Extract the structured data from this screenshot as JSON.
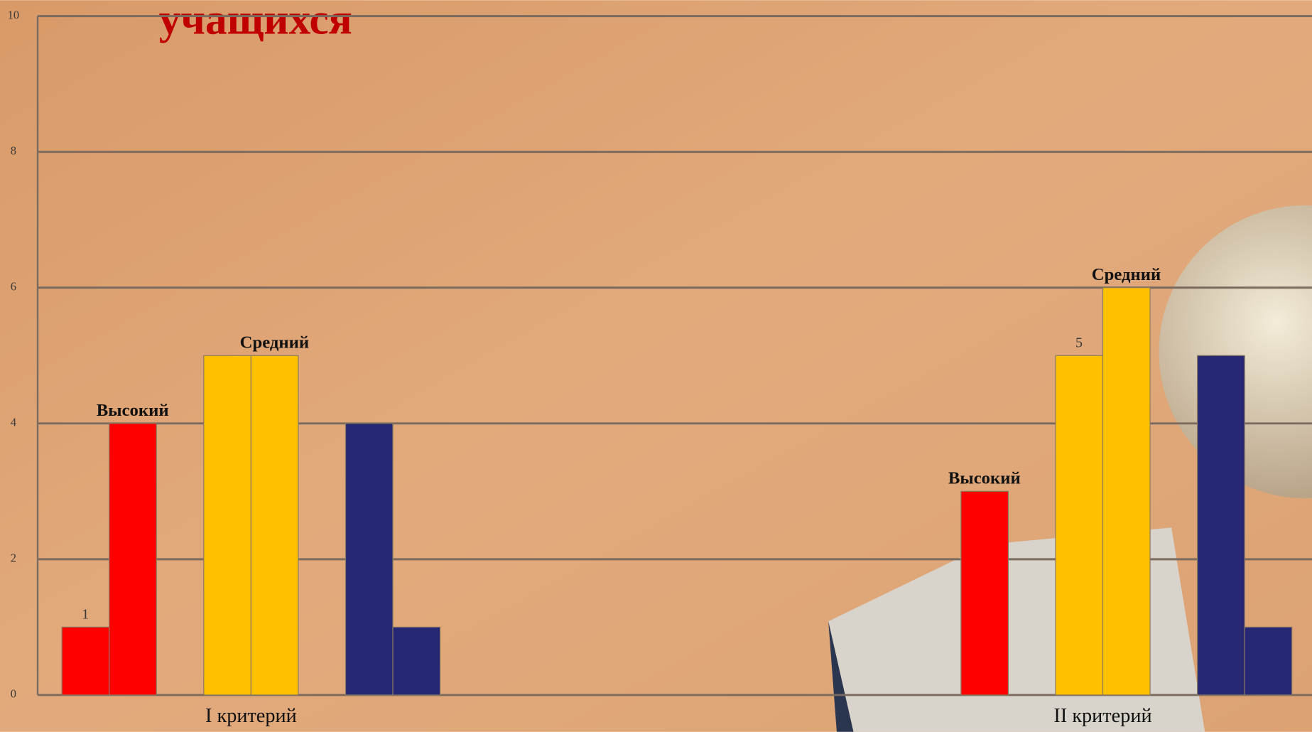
{
  "chart_data": {
    "type": "bar",
    "title": "учащихся",
    "categories": [
      "I критерий",
      "II критерий"
    ],
    "series": [
      {
        "color": "#ff0000",
        "values": [
          1,
          null
        ],
        "value_labels": [
          "1",
          null
        ]
      },
      {
        "color": "#ff0000",
        "values": [
          4,
          3
        ],
        "value_labels": [
          "Высокий",
          "Высокий"
        ]
      },
      {
        "color": "#ffc000",
        "values": [
          5,
          5
        ],
        "value_labels": [
          null,
          "5"
        ]
      },
      {
        "color": "#ffc000",
        "values": [
          5,
          6
        ],
        "value_labels": [
          "Средний",
          "Средний"
        ]
      },
      {
        "color": "#262873",
        "values": [
          4,
          5
        ]
      },
      {
        "color": "#262873",
        "values": [
          1,
          1
        ]
      }
    ],
    "ylim": [
      0,
      10
    ],
    "yticks": [
      0,
      2,
      4,
      6,
      8,
      10
    ],
    "grid": true
  }
}
